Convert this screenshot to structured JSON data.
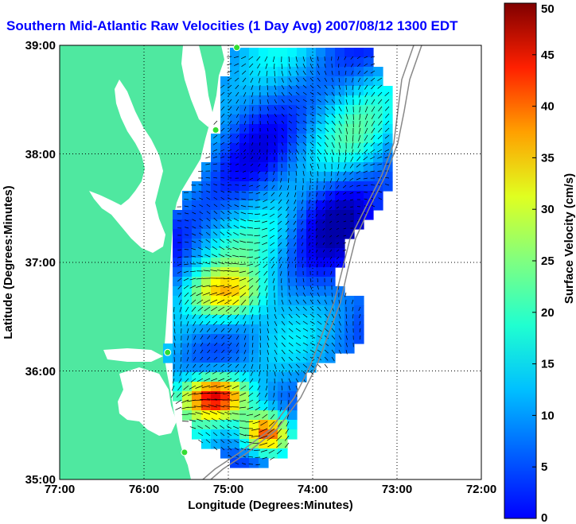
{
  "title": "Southern Mid-Atlantic Raw Velocities (1 Day Avg) 2007/08/12 1300 EDT",
  "map": {
    "xlabel": "Longitude (Degrees:Minutes)",
    "ylabel": "Latitude (Degrees:Minutes)",
    "x_ticks": [
      "77:00",
      "76:00",
      "75:00",
      "74:00",
      "73:00",
      "72:00"
    ],
    "y_ticks": [
      "39:00",
      "38:00",
      "37:00",
      "36:00",
      "35:00"
    ],
    "lon_range": [
      -77,
      -72
    ],
    "lat_range": [
      35,
      39
    ],
    "grid": "dotted",
    "land_color": "#4fe8a0",
    "water_color": "#ffffff"
  },
  "colorbar": {
    "label": "Surface Velocity (cm/s)",
    "ticks": [
      "0",
      "5",
      "10",
      "15",
      "20",
      "25",
      "30",
      "35",
      "40",
      "45",
      "50"
    ],
    "range": [
      0,
      50
    ],
    "colormap": "jet"
  },
  "stations": [
    {
      "lon": -74.9,
      "lat": 38.98
    },
    {
      "lon": -75.15,
      "lat": 38.22
    },
    {
      "lon": -75.72,
      "lat": 36.17
    },
    {
      "lon": -75.52,
      "lat": 35.25
    }
  ]
}
